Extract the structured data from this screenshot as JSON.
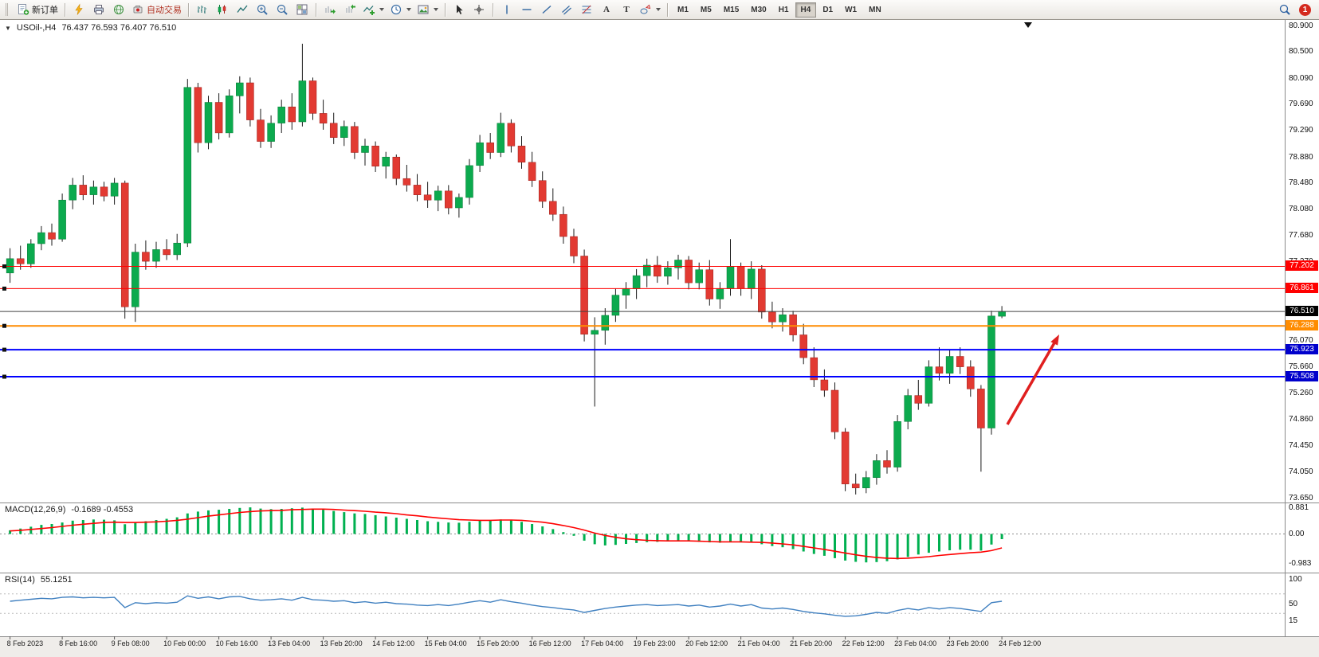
{
  "toolbar": {
    "new_order_label": "新订单",
    "auto_trading_label": "自动交易",
    "text_tool_glyph": "A",
    "label_tool_glyph": "T",
    "timeframes": [
      "M1",
      "M5",
      "M15",
      "M30",
      "H1",
      "H4",
      "D1",
      "W1",
      "MN"
    ],
    "active_timeframe": "H4",
    "notification_count": "1",
    "icons": [
      "new-order-icon",
      "lightning-icon",
      "printer-icon",
      "globe-icon",
      "auto-trading-icon",
      "bar-chart-icon",
      "candlestick-icon",
      "line-chart-icon",
      "zoom-in-icon",
      "zoom-out-icon",
      "tile-windows-icon",
      "auto-scroll-icon",
      "chart-shift-icon",
      "indicators-icon",
      "periods-icon",
      "templates-icon",
      "cursor-icon",
      "crosshair-icon",
      "vertical-line-icon",
      "horizontal-line-icon",
      "trendline-icon",
      "channel-icon",
      "fibonacci-icon",
      "text-icon",
      "label-icon",
      "shapes-icon",
      "search-icon"
    ]
  },
  "chart": {
    "expander_glyph": "▼",
    "symbol_period": "USOil-,H4",
    "ohlc_text": "76.437 76.593 76.407 76.510"
  },
  "chart_data": {
    "type": "candlestick",
    "symbol": "USOil-",
    "timeframe": "H4",
    "current_ohlc": {
      "open": 76.437,
      "high": 76.593,
      "low": 76.407,
      "close": 76.51
    },
    "y_range": [
      73.65,
      80.9
    ],
    "price_axis_ticks": [
      "80.900",
      "80.500",
      "80.090",
      "79.690",
      "79.290",
      "78.880",
      "78.480",
      "78.080",
      "77.680",
      "77.270",
      "76.870",
      "76.470",
      "76.070",
      "75.660",
      "75.260",
      "74.860",
      "74.450",
      "74.050",
      "73.650"
    ],
    "time_labels": [
      "8 Feb 2023",
      "8 Feb 16:00",
      "9 Feb 08:00",
      "10 Feb 00:00",
      "10 Feb 16:00",
      "13 Feb 04:00",
      "13 Feb 20:00",
      "14 Feb 12:00",
      "15 Feb 04:00",
      "15 Feb 20:00",
      "16 Feb 12:00",
      "17 Feb 04:00",
      "19 Feb 23:00",
      "20 Feb 12:00",
      "21 Feb 04:00",
      "21 Feb 20:00",
      "22 Feb 12:00",
      "23 Feb 04:00",
      "23 Feb 20:00",
      "24 Feb 12:00"
    ],
    "horizontal_lines": [
      {
        "price": 77.202,
        "label": "77.202",
        "color": "#ff0000",
        "width": 1,
        "style": "object"
      },
      {
        "price": 76.861,
        "label": "76.861",
        "color": "#ff0000",
        "width": 1,
        "style": "object"
      },
      {
        "price": 76.51,
        "label": "76.510",
        "color": "#404040",
        "width": 1,
        "style": "current-price"
      },
      {
        "price": 76.288,
        "label": "76.288",
        "color": "#ff8c00",
        "width": 2,
        "style": "object"
      },
      {
        "price": 75.923,
        "label": "75.923",
        "color": "#0000ff",
        "width": 2,
        "style": "object"
      },
      {
        "price": 75.508,
        "label": "75.508",
        "color": "#0000ff",
        "width": 2,
        "style": "object"
      }
    ],
    "annotation_arrow": {
      "color": "#e01f1f",
      "direction": "up-right"
    },
    "colors": {
      "bull": "#0caa4e",
      "bear": "#e23a32",
      "wick": "#1a1a1a",
      "macd_histogram": "#00b050",
      "macd_signal": "#ff0000",
      "rsi_line": "#4080c0",
      "background": "#ffffff"
    },
    "candles_ohlc": [
      [
        77.1,
        77.48,
        76.95,
        77.32
      ],
      [
        77.32,
        77.52,
        77.15,
        77.24
      ],
      [
        77.24,
        77.62,
        77.18,
        77.55
      ],
      [
        77.55,
        77.82,
        77.45,
        77.72
      ],
      [
        77.72,
        77.86,
        77.52,
        77.62
      ],
      [
        77.62,
        78.32,
        77.58,
        78.22
      ],
      [
        78.22,
        78.56,
        78.08,
        78.45
      ],
      [
        78.45,
        78.6,
        78.22,
        78.3
      ],
      [
        78.3,
        78.52,
        78.15,
        78.42
      ],
      [
        78.42,
        78.5,
        78.2,
        78.28
      ],
      [
        78.28,
        78.56,
        78.15,
        78.48
      ],
      [
        78.48,
        78.52,
        76.4,
        76.58
      ],
      [
        76.58,
        77.55,
        76.35,
        77.42
      ],
      [
        77.42,
        77.6,
        77.15,
        77.28
      ],
      [
        77.28,
        77.58,
        77.18,
        77.46
      ],
      [
        77.46,
        77.62,
        77.3,
        77.38
      ],
      [
        77.38,
        77.7,
        77.3,
        77.56
      ],
      [
        77.56,
        80.08,
        77.5,
        79.95
      ],
      [
        79.95,
        80.02,
        78.95,
        79.1
      ],
      [
        79.1,
        79.82,
        79.0,
        79.72
      ],
      [
        79.72,
        79.86,
        79.15,
        79.25
      ],
      [
        79.25,
        79.92,
        79.18,
        79.82
      ],
      [
        79.82,
        80.12,
        79.55,
        80.02
      ],
      [
        80.02,
        80.1,
        79.35,
        79.45
      ],
      [
        79.45,
        79.62,
        79.02,
        79.12
      ],
      [
        79.12,
        79.52,
        79.02,
        79.4
      ],
      [
        79.4,
        79.76,
        79.25,
        79.65
      ],
      [
        79.65,
        79.86,
        79.3,
        79.42
      ],
      [
        79.42,
        80.62,
        79.35,
        80.05
      ],
      [
        80.05,
        80.1,
        79.45,
        79.55
      ],
      [
        79.55,
        79.76,
        79.3,
        79.4
      ],
      [
        79.4,
        79.56,
        79.08,
        79.18
      ],
      [
        79.18,
        79.44,
        79.05,
        79.35
      ],
      [
        79.35,
        79.42,
        78.85,
        78.95
      ],
      [
        78.95,
        79.16,
        78.75,
        79.05
      ],
      [
        79.05,
        79.12,
        78.65,
        78.74
      ],
      [
        78.74,
        78.96,
        78.55,
        78.88
      ],
      [
        78.88,
        78.92,
        78.45,
        78.55
      ],
      [
        78.55,
        78.76,
        78.35,
        78.45
      ],
      [
        78.45,
        78.62,
        78.2,
        78.3
      ],
      [
        78.3,
        78.5,
        78.1,
        78.22
      ],
      [
        78.22,
        78.44,
        78.05,
        78.36
      ],
      [
        78.36,
        78.45,
        78.0,
        78.1
      ],
      [
        78.1,
        78.32,
        77.95,
        78.26
      ],
      [
        78.26,
        78.85,
        78.15,
        78.75
      ],
      [
        78.75,
        79.22,
        78.65,
        79.1
      ],
      [
        79.1,
        79.25,
        78.85,
        78.95
      ],
      [
        78.95,
        79.56,
        78.88,
        79.4
      ],
      [
        79.4,
        79.46,
        78.95,
        79.05
      ],
      [
        79.05,
        79.2,
        78.7,
        78.8
      ],
      [
        78.8,
        78.96,
        78.42,
        78.52
      ],
      [
        78.52,
        78.66,
        78.1,
        78.2
      ],
      [
        78.2,
        78.4,
        77.9,
        78.0
      ],
      [
        78.0,
        78.12,
        77.55,
        77.66
      ],
      [
        77.66,
        77.78,
        77.25,
        77.36
      ],
      [
        77.36,
        77.46,
        76.05,
        76.16
      ],
      [
        76.16,
        76.42,
        75.05,
        76.22
      ],
      [
        76.22,
        76.56,
        76.0,
        76.45
      ],
      [
        76.45,
        76.86,
        76.35,
        76.76
      ],
      [
        76.76,
        76.96,
        76.55,
        76.86
      ],
      [
        76.86,
        77.16,
        76.7,
        77.06
      ],
      [
        77.06,
        77.32,
        76.88,
        77.22
      ],
      [
        77.22,
        77.36,
        76.95,
        77.05
      ],
      [
        77.05,
        77.28,
        76.92,
        77.18
      ],
      [
        77.18,
        77.38,
        77.0,
        77.3
      ],
      [
        77.3,
        77.36,
        76.85,
        76.95
      ],
      [
        76.95,
        77.26,
        76.85,
        77.15
      ],
      [
        77.15,
        77.3,
        76.6,
        76.7
      ],
      [
        76.7,
        76.96,
        76.55,
        76.86
      ],
      [
        76.86,
        77.62,
        76.75,
        77.2
      ],
      [
        77.2,
        77.26,
        76.75,
        76.86
      ],
      [
        76.86,
        77.28,
        76.7,
        77.16
      ],
      [
        77.16,
        77.22,
        76.4,
        76.5
      ],
      [
        76.5,
        76.66,
        76.25,
        76.35
      ],
      [
        76.35,
        76.56,
        76.2,
        76.46
      ],
      [
        76.46,
        76.52,
        76.05,
        76.15
      ],
      [
        76.15,
        76.32,
        75.7,
        75.8
      ],
      [
        75.8,
        75.96,
        75.35,
        75.46
      ],
      [
        75.46,
        75.62,
        75.2,
        75.3
      ],
      [
        75.3,
        75.42,
        74.55,
        74.66
      ],
      [
        74.66,
        74.72,
        73.75,
        73.86
      ],
      [
        73.86,
        74.02,
        73.7,
        73.8
      ],
      [
        73.8,
        74.06,
        73.72,
        73.96
      ],
      [
        73.96,
        74.32,
        73.85,
        74.22
      ],
      [
        74.22,
        74.38,
        74.02,
        74.12
      ],
      [
        74.12,
        74.92,
        74.05,
        74.82
      ],
      [
        74.82,
        75.32,
        74.7,
        75.22
      ],
      [
        75.22,
        75.46,
        75.0,
        75.1
      ],
      [
        75.1,
        75.76,
        75.05,
        75.66
      ],
      [
        75.66,
        75.96,
        75.45,
        75.56
      ],
      [
        75.56,
        75.92,
        75.4,
        75.82
      ],
      [
        75.82,
        75.96,
        75.55,
        75.66
      ],
      [
        75.66,
        75.76,
        75.2,
        75.32
      ],
      [
        75.32,
        75.38,
        74.05,
        74.72
      ],
      [
        74.72,
        76.52,
        74.62,
        76.44
      ],
      [
        76.437,
        76.593,
        76.407,
        76.51
      ]
    ],
    "macd": {
      "label": "MACD(12,26,9)",
      "values_text": "-0.1689 -0.4553",
      "main_value": -0.1689,
      "signal_value": -0.4553,
      "scale_ticks": [
        "0.881",
        "0.00",
        "-0.983"
      ],
      "histogram": [
        0.12,
        0.18,
        0.24,
        0.3,
        0.33,
        0.38,
        0.44,
        0.46,
        0.48,
        0.47,
        0.45,
        0.32,
        0.38,
        0.42,
        0.46,
        0.5,
        0.55,
        0.68,
        0.74,
        0.78,
        0.8,
        0.83,
        0.86,
        0.88,
        0.84,
        0.82,
        0.83,
        0.85,
        0.87,
        0.84,
        0.8,
        0.76,
        0.72,
        0.68,
        0.66,
        0.62,
        0.58,
        0.54,
        0.5,
        0.46,
        0.42,
        0.4,
        0.38,
        0.37,
        0.4,
        0.44,
        0.46,
        0.48,
        0.45,
        0.4,
        0.33,
        0.25,
        0.16,
        0.06,
        -0.06,
        -0.22,
        -0.34,
        -0.38,
        -0.36,
        -0.33,
        -0.3,
        -0.27,
        -0.26,
        -0.25,
        -0.24,
        -0.25,
        -0.26,
        -0.28,
        -0.29,
        -0.27,
        -0.28,
        -0.29,
        -0.34,
        -0.4,
        -0.44,
        -0.5,
        -0.58,
        -0.66,
        -0.72,
        -0.8,
        -0.88,
        -0.92,
        -0.94,
        -0.93,
        -0.9,
        -0.84,
        -0.76,
        -0.68,
        -0.62,
        -0.58,
        -0.54,
        -0.52,
        -0.52,
        -0.55,
        -0.35,
        -0.17
      ],
      "signal": [
        0.1,
        0.12,
        0.15,
        0.18,
        0.21,
        0.25,
        0.29,
        0.32,
        0.35,
        0.38,
        0.39,
        0.38,
        0.38,
        0.39,
        0.4,
        0.42,
        0.45,
        0.49,
        0.54,
        0.59,
        0.63,
        0.67,
        0.71,
        0.74,
        0.76,
        0.77,
        0.78,
        0.8,
        0.81,
        0.82,
        0.82,
        0.81,
        0.79,
        0.77,
        0.75,
        0.72,
        0.7,
        0.67,
        0.63,
        0.6,
        0.56,
        0.53,
        0.5,
        0.47,
        0.46,
        0.45,
        0.45,
        0.46,
        0.46,
        0.45,
        0.42,
        0.39,
        0.34,
        0.28,
        0.21,
        0.13,
        0.03,
        -0.05,
        -0.11,
        -0.16,
        -0.19,
        -0.21,
        -0.22,
        -0.23,
        -0.23,
        -0.23,
        -0.24,
        -0.25,
        -0.26,
        -0.26,
        -0.26,
        -0.27,
        -0.28,
        -0.3,
        -0.33,
        -0.36,
        -0.41,
        -0.46,
        -0.51,
        -0.57,
        -0.63,
        -0.69,
        -0.74,
        -0.78,
        -0.8,
        -0.81,
        -0.8,
        -0.78,
        -0.75,
        -0.71,
        -0.68,
        -0.65,
        -0.62,
        -0.6,
        -0.55,
        -0.46
      ]
    },
    "rsi": {
      "label": "RSI(14)",
      "value_text": "55.1251",
      "value": 55.1251,
      "scale_ticks": [
        "100",
        "50",
        "15"
      ],
      "levels": [
        70,
        30
      ],
      "values": [
        55,
        57,
        59,
        61,
        60,
        63,
        64,
        62,
        63,
        62,
        63,
        42,
        52,
        50,
        52,
        51,
        53,
        66,
        61,
        64,
        60,
        64,
        65,
        60,
        57,
        58,
        60,
        57,
        63,
        58,
        57,
        55,
        56,
        52,
        54,
        51,
        53,
        50,
        49,
        47,
        46,
        48,
        46,
        49,
        53,
        56,
        53,
        58,
        54,
        51,
        47,
        44,
        42,
        39,
        37,
        32,
        36,
        40,
        43,
        45,
        47,
        48,
        46,
        47,
        48,
        45,
        47,
        43,
        45,
        49,
        45,
        48,
        41,
        39,
        41,
        38,
        34,
        31,
        29,
        26,
        24,
        25,
        28,
        32,
        30,
        36,
        40,
        37,
        42,
        39,
        42,
        40,
        37,
        34,
        52,
        55
      ]
    }
  }
}
